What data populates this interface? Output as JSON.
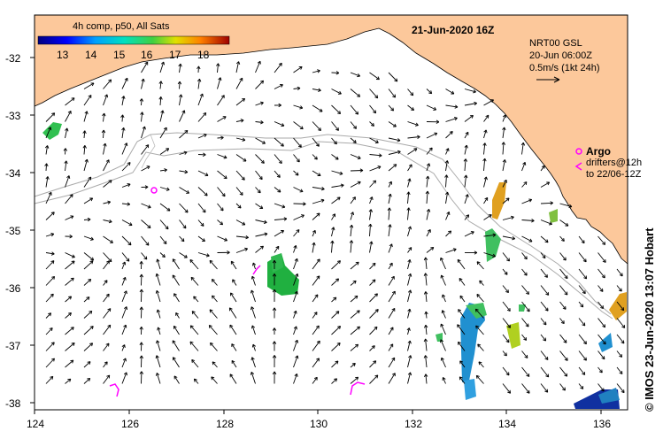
{
  "title": "21-Jun-2020 16Z",
  "legend": {
    "label": "4h comp, p50, All Sats",
    "ticks": [
      "13",
      "14",
      "15",
      "16",
      "17",
      "18"
    ]
  },
  "info": {
    "line1": "NRT00 GSL",
    "line2": "20-Jun 06:00Z",
    "line3": "0.5m/s (1kt 24h)"
  },
  "argo": {
    "label": "Argo",
    "line2": "drifters@12h",
    "line3": "to 22/06-12Z"
  },
  "credit": "©  IMOS 23-Jun-2020 13:07 Hobart",
  "axes": {
    "x_ticks": [
      "124",
      "126",
      "128",
      "130",
      "132",
      "134",
      "136"
    ],
    "y_ticks": [
      "-32",
      "-33",
      "-34",
      "-35",
      "-36",
      "-37",
      "-38"
    ]
  },
  "colors": {
    "land": "#fcc89b",
    "sst_low": "#000080",
    "sst_high": "#8b0000",
    "argo": "#ff00ff",
    "bathymetry": "#aaaaaa"
  }
}
